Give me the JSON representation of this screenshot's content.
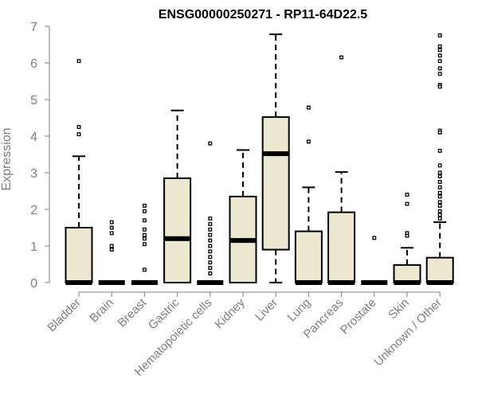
{
  "chart_data": {
    "type": "box",
    "title": "ENSG00000250271 - RP11-64D22.5",
    "ylabel": "Expression",
    "xlabel": "",
    "ylim": [
      0,
      7
    ],
    "yticks": [
      0,
      1,
      2,
      3,
      4,
      5,
      6,
      7
    ],
    "grid": false,
    "legend": "none",
    "colors": {
      "box_fill": "#ede8d0",
      "stroke": "#000000",
      "axis_text": "#808080"
    },
    "categories": [
      "Bladder",
      "Brain",
      "Breast",
      "Gastric",
      "Hematopoietic cells",
      "Kidney",
      "Liver",
      "Lung",
      "Pancreas",
      "Prostate",
      "Skin",
      "Unknown / Other"
    ],
    "boxes": [
      {
        "q1": 0,
        "median": 0,
        "q3": 1.5,
        "whisker_low": 0,
        "whisker_high": 3.45,
        "outliers": [
          6.05,
          4.25,
          4.05
        ]
      },
      {
        "q1": 0,
        "median": 0,
        "q3": 0,
        "whisker_low": 0,
        "whisker_high": 0,
        "outliers": [
          1.65,
          1.5,
          1.35,
          1.0,
          0.9
        ]
      },
      {
        "q1": 0,
        "median": 0,
        "q3": 0,
        "whisker_low": 0,
        "whisker_high": 0,
        "outliers": [
          2.1,
          1.95,
          1.7,
          1.45,
          1.3,
          1.2,
          1.05,
          0.35
        ]
      },
      {
        "q1": 0,
        "median": 1.2,
        "q3": 2.85,
        "whisker_low": 0,
        "whisker_high": 4.7,
        "outliers": []
      },
      {
        "q1": 0,
        "median": 0,
        "q3": 0,
        "whisker_low": 0,
        "whisker_high": 0,
        "outliers": [
          3.8,
          1.75,
          1.6,
          1.45,
          1.3,
          1.15,
          1.0,
          0.85,
          0.7,
          0.55,
          0.4,
          0.25
        ]
      },
      {
        "q1": 0,
        "median": 1.15,
        "q3": 2.35,
        "whisker_low": 0,
        "whisker_high": 3.62,
        "outliers": []
      },
      {
        "q1": 0.9,
        "median": 3.52,
        "q3": 4.52,
        "whisker_low": 0,
        "whisker_high": 6.78,
        "outliers": []
      },
      {
        "q1": 0,
        "median": 0,
        "q3": 1.4,
        "whisker_low": 0,
        "whisker_high": 2.6,
        "outliers": [
          4.78,
          3.85
        ]
      },
      {
        "q1": 0,
        "median": 0,
        "q3": 1.92,
        "whisker_low": 0,
        "whisker_high": 3.02,
        "outliers": [
          6.15
        ]
      },
      {
        "q1": 0,
        "median": 0,
        "q3": 0,
        "whisker_low": 0,
        "whisker_high": 0,
        "outliers": [
          1.22
        ]
      },
      {
        "q1": 0,
        "median": 0,
        "q3": 0.48,
        "whisker_low": 0,
        "whisker_high": 0.95,
        "outliers": [
          2.4,
          2.15,
          1.35,
          1.28
        ]
      },
      {
        "q1": 0,
        "median": 0,
        "q3": 0.68,
        "whisker_low": 0,
        "whisker_high": 1.65,
        "outliers": [
          6.75,
          6.45,
          6.35,
          6.2,
          6.05,
          5.85,
          5.7,
          5.4,
          5.35,
          4.15,
          4.1,
          3.6,
          3.2,
          3.0,
          2.9,
          2.75,
          2.6,
          2.45,
          2.35,
          2.2,
          2.1,
          1.95,
          1.85,
          1.75
        ]
      }
    ]
  }
}
